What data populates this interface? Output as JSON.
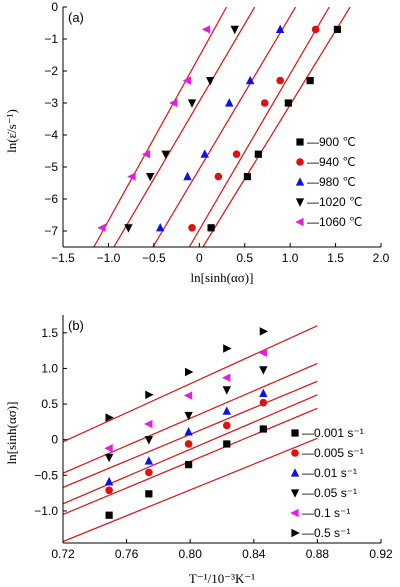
{
  "chart_data": [
    {
      "type": "scatter",
      "panel_label": "(a)",
      "xlabel": "ln[sinh(ασ)]",
      "ylabel": "ln(ε̇/s⁻¹)",
      "xlim": [
        -1.5,
        2.0
      ],
      "ylim": [
        -7.5,
        0
      ],
      "xticks": [
        -1.5,
        -1.0,
        -0.5,
        0,
        0.5,
        1.0,
        1.5,
        2.0
      ],
      "xtick_labels": [
        "−1.5",
        "−1.0",
        "−0.5",
        "0",
        "0.5",
        "1.0",
        "1.5",
        "2.0"
      ],
      "yticks": [
        0,
        -1,
        -2,
        -3,
        -4,
        -5,
        -6,
        -7
      ],
      "ytick_labels": [
        "0",
        "−1",
        "−2",
        "−3",
        "−4",
        "−5",
        "−6",
        "−7"
      ],
      "legend_position": "bottom-right",
      "series": [
        {
          "name": "—900 ℃",
          "marker": "square",
          "color": "#000000",
          "points": [
            [
              0.13,
              -6.9
            ],
            [
              0.53,
              -5.3
            ],
            [
              0.65,
              -4.6
            ],
            [
              0.98,
              -3.0
            ],
            [
              1.22,
              -2.3
            ],
            [
              1.52,
              -0.7
            ]
          ],
          "fit": [
            [
              0.04,
              -7.5
            ],
            [
              1.66,
              0
            ]
          ]
        },
        {
          "name": "—940 ℃",
          "marker": "circle",
          "color": "#e01010",
          "points": [
            [
              -0.08,
              -6.9
            ],
            [
              0.21,
              -5.3
            ],
            [
              0.41,
              -4.6
            ],
            [
              0.72,
              -3.0
            ],
            [
              0.89,
              -2.3
            ],
            [
              1.28,
              -0.7
            ]
          ],
          "fit": [
            [
              -0.11,
              -7.5
            ],
            [
              1.43,
              0
            ]
          ]
        },
        {
          "name": "—980 ℃",
          "marker": "triangle-up",
          "color": "#1010e0",
          "points": [
            [
              -0.43,
              -6.9
            ],
            [
              -0.13,
              -5.3
            ],
            [
              0.06,
              -4.6
            ],
            [
              0.33,
              -3.0
            ],
            [
              0.56,
              -2.3
            ],
            [
              0.89,
              -0.7
            ]
          ],
          "fit": [
            [
              -0.51,
              -7.5
            ],
            [
              1.06,
              0
            ]
          ]
        },
        {
          "name": "—1020 ℃",
          "marker": "triangle-down",
          "color": "#000000",
          "points": [
            [
              -0.78,
              -6.9
            ],
            [
              -0.54,
              -5.3
            ],
            [
              -0.37,
              -4.6
            ],
            [
              -0.08,
              -3.0
            ],
            [
              0.12,
              -2.3
            ],
            [
              0.39,
              -0.7
            ]
          ],
          "fit": [
            [
              -0.94,
              -7.5
            ],
            [
              0.61,
              0
            ]
          ]
        },
        {
          "name": "—1060 ℃",
          "marker": "triangle-left",
          "color": "#e020e0",
          "points": [
            [
              -1.07,
              -6.9
            ],
            [
              -0.74,
              -5.3
            ],
            [
              -0.58,
              -4.6
            ],
            [
              -0.28,
              -3.0
            ],
            [
              -0.13,
              -2.3
            ],
            [
              0.08,
              -0.7
            ]
          ],
          "fit": [
            [
              -1.16,
              -7.5
            ],
            [
              0.3,
              0
            ]
          ]
        }
      ]
    },
    {
      "type": "scatter",
      "panel_label": "(b)",
      "xlabel": "T⁻¹/10⁻³K⁻¹",
      "ylabel": "ln[sinh(ασ)]",
      "xlim": [
        0.72,
        0.92
      ],
      "ylim": [
        -1.45,
        1.75
      ],
      "xticks": [
        0.72,
        0.76,
        0.8,
        0.84,
        0.88,
        0.92
      ],
      "xtick_labels": [
        "0.72",
        "0.76",
        "0.80",
        "0.84",
        "0.88",
        "0.92"
      ],
      "yticks": [
        -1.0,
        -0.5,
        0,
        0.5,
        1.0,
        1.5
      ],
      "ytick_labels": [
        "−1.0",
        "−0.5",
        "0",
        "0.5",
        "1.0",
        "1.5"
      ],
      "legend_position": "bottom-right",
      "series": [
        {
          "name": "—0.001 s⁻¹",
          "marker": "square",
          "color": "#000000",
          "points": [
            [
              0.749,
              -1.06
            ],
            [
              0.774,
              -0.76
            ],
            [
              0.799,
              -0.35
            ],
            [
              0.823,
              -0.06
            ],
            [
              0.846,
              0.15
            ]
          ],
          "fit": [
            [
              0.72,
              -1.43
            ],
            [
              0.88,
              0.02
            ]
          ]
        },
        {
          "name": "—0.005 s⁻¹",
          "marker": "circle",
          "color": "#e01010",
          "points": [
            [
              0.749,
              -0.71
            ],
            [
              0.774,
              -0.46
            ],
            [
              0.799,
              -0.06
            ],
            [
              0.823,
              0.2
            ],
            [
              0.846,
              0.52
            ]
          ],
          "fit": [
            [
              0.72,
              -1.05
            ],
            [
              0.88,
              0.44
            ]
          ]
        },
        {
          "name": "—0.01 s⁻¹",
          "marker": "triangle-up",
          "color": "#1010e0",
          "points": [
            [
              0.749,
              -0.59
            ],
            [
              0.774,
              -0.3
            ],
            [
              0.799,
              0.11
            ],
            [
              0.823,
              0.4
            ],
            [
              0.846,
              0.65
            ]
          ],
          "fit": [
            [
              0.72,
              -0.9
            ],
            [
              0.88,
              0.63
            ]
          ]
        },
        {
          "name": "—0.05 s⁻¹",
          "marker": "triangle-down",
          "color": "#000000",
          "points": [
            [
              0.749,
              -0.25
            ],
            [
              0.774,
              0.0
            ],
            [
              0.799,
              0.34
            ],
            [
              0.823,
              0.7
            ],
            [
              0.846,
              0.98
            ]
          ],
          "fit": [
            [
              0.72,
              -0.67
            ],
            [
              0.88,
              0.82
            ]
          ]
        },
        {
          "name": "—0.1 s⁻¹",
          "marker": "triangle-left",
          "color": "#e020e0",
          "points": [
            [
              0.749,
              -0.12
            ],
            [
              0.774,
              0.22
            ],
            [
              0.799,
              0.62
            ],
            [
              0.823,
              0.87
            ],
            [
              0.846,
              1.22
            ]
          ],
          "fit": [
            [
              0.72,
              -0.47
            ],
            [
              0.88,
              1.07
            ]
          ]
        },
        {
          "name": "—0.5 s⁻¹",
          "marker": "triangle-right",
          "color": "#000000",
          "points": [
            [
              0.749,
              0.31
            ],
            [
              0.774,
              0.63
            ],
            [
              0.799,
              0.95
            ],
            [
              0.823,
              1.28
            ],
            [
              0.846,
              1.52
            ]
          ],
          "fit": [
            [
              0.72,
              -0.03
            ],
            [
              0.88,
              1.6
            ]
          ]
        }
      ]
    }
  ]
}
